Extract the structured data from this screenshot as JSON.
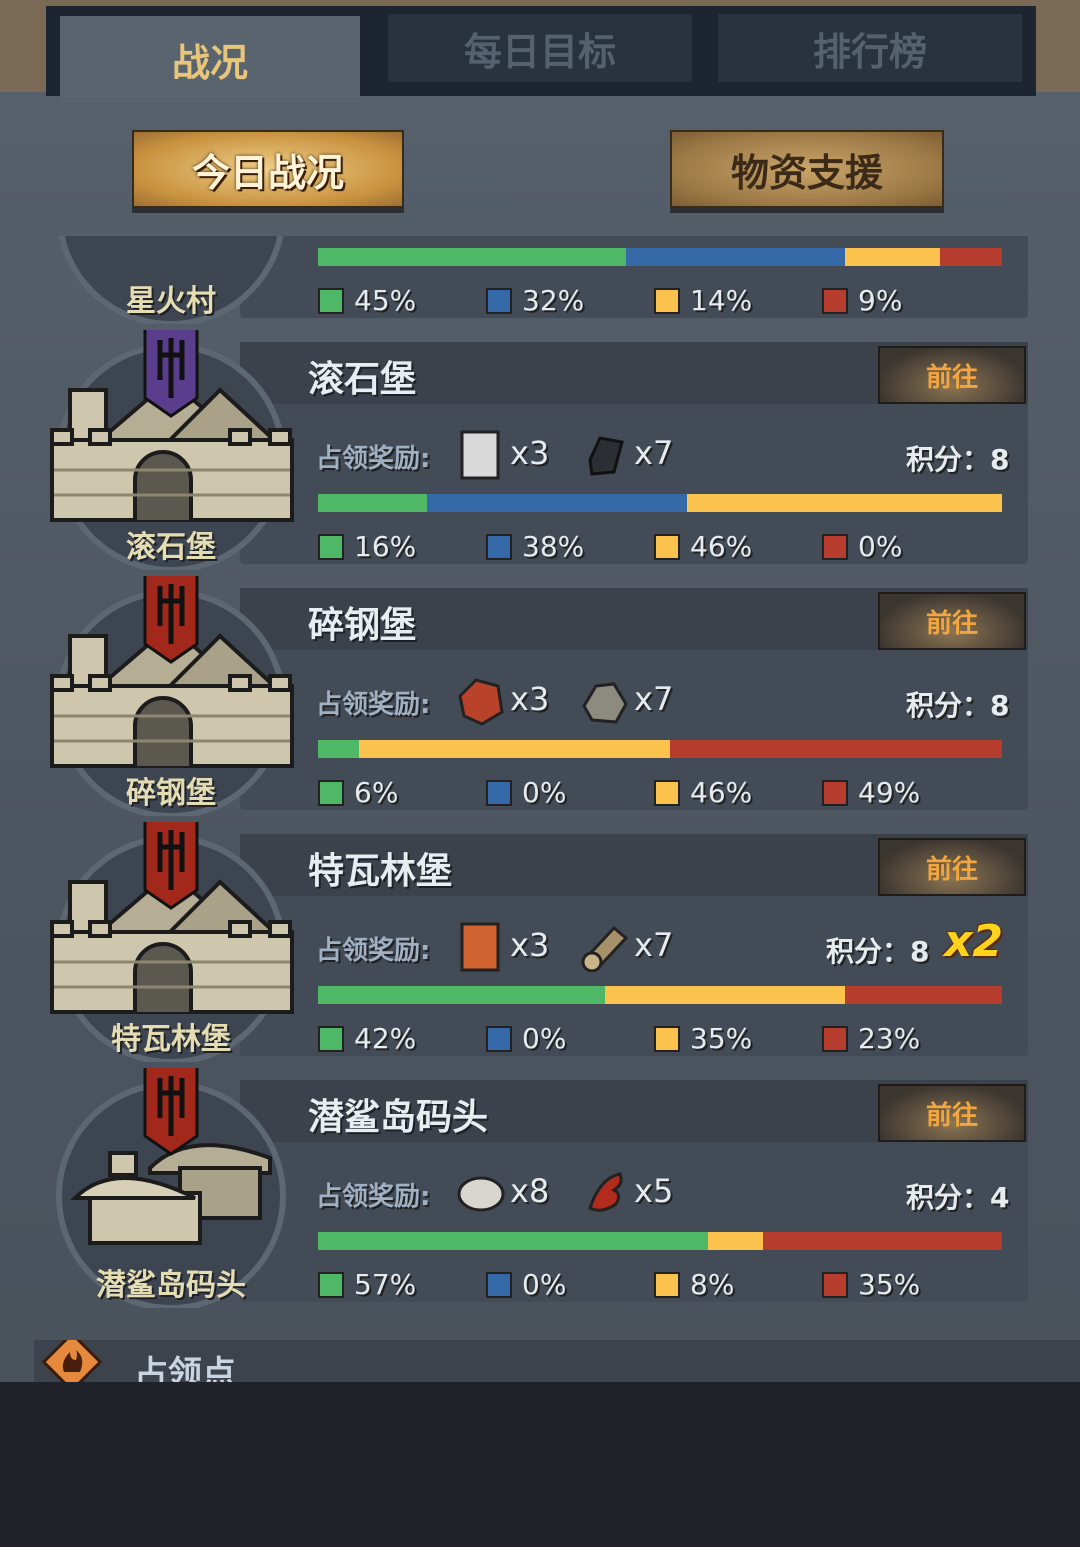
{
  "tabs": [
    {
      "label": "战况",
      "active": true
    },
    {
      "label": "每日目标",
      "active": false
    },
    {
      "label": "排行榜",
      "active": false
    }
  ],
  "buttons": {
    "today": "今日战况",
    "supply": "物资支援"
  },
  "colors": {
    "green": "#4fb866",
    "blue": "#3569a8",
    "yellow": "#fcc24e",
    "red": "#b63c2d",
    "accent": "#e7c57a"
  },
  "labels": {
    "reward": "占领奖励:",
    "score_prefix": "积分：",
    "go": "前往"
  },
  "locations": [
    {
      "name": "星火村",
      "partial": true,
      "shares": [
        "45%",
        "32%",
        "14%",
        "9%"
      ],
      "values": [
        45,
        32,
        14,
        9
      ]
    },
    {
      "name": "滚石堡",
      "banner": "purple",
      "building": "castle",
      "rewards": [
        {
          "icon": "stone-block-icon",
          "qty": "x3"
        },
        {
          "icon": "iron-ore-icon",
          "qty": "x7"
        }
      ],
      "score": "8",
      "shares": [
        "16%",
        "38%",
        "46%",
        "0%"
      ],
      "values": [
        16,
        38,
        46,
        0
      ]
    },
    {
      "name": "碎钢堡",
      "banner": "red",
      "building": "castle",
      "rewards": [
        {
          "icon": "molten-ore-icon",
          "qty": "x3"
        },
        {
          "icon": "rock-icon",
          "qty": "x7"
        }
      ],
      "score": "8",
      "shares": [
        "6%",
        "0%",
        "46%",
        "49%"
      ],
      "values": [
        6,
        0,
        46,
        49
      ]
    },
    {
      "name": "特瓦林堡",
      "banner": "red",
      "building": "castle",
      "rewards": [
        {
          "icon": "plank-icon",
          "qty": "x3"
        },
        {
          "icon": "log-icon",
          "qty": "x7"
        }
      ],
      "score": "8",
      "multiplier": "x2",
      "shares": [
        "42%",
        "0%",
        "35%",
        "23%"
      ],
      "values": [
        42,
        0,
        35,
        23
      ]
    },
    {
      "name": "潜鲨岛码头",
      "banner": "red",
      "building": "dock",
      "rewards": [
        {
          "icon": "oyster-icon",
          "qty": "x8"
        },
        {
          "icon": "lobster-icon",
          "qty": "x5"
        }
      ],
      "score": "4",
      "shares": [
        "57%",
        "0%",
        "8%",
        "35%"
      ],
      "values": [
        57,
        0,
        8,
        35
      ]
    }
  ],
  "section": {
    "title": "占领点",
    "icon": "flame-icon"
  }
}
